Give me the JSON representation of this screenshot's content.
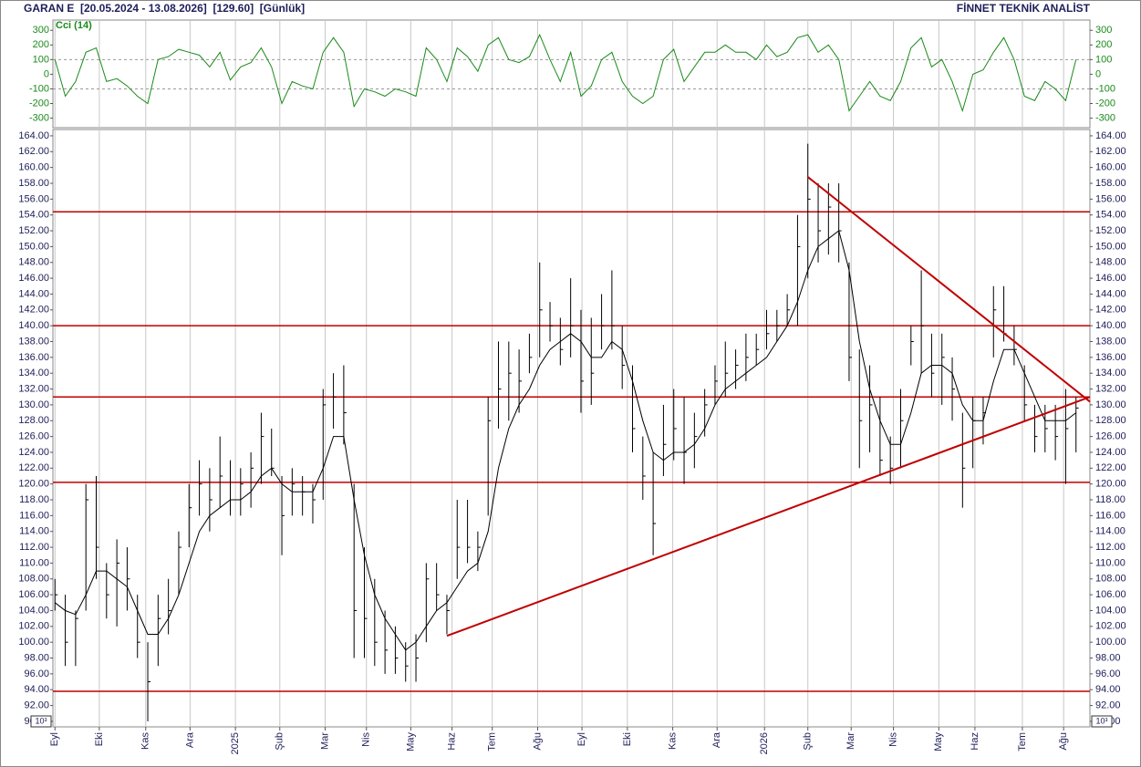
{
  "header": {
    "left": "GARAN E  [20.05.2024 - 13.08.2026]  [129.60]  [Günlük]",
    "right": "FİNNET TEKNİK ANALİST"
  },
  "chart_data": [
    {
      "type": "line",
      "title": "Cci (14)",
      "color": "#1a8a1a",
      "xlim": [
        -0.2,
        100.35
      ],
      "ylim": [
        -365,
        370
      ],
      "yticks": [
        300,
        200,
        100,
        0,
        -100,
        -200,
        -300
      ],
      "ref_lines": [
        100,
        -100
      ],
      "values": [
        100,
        -150,
        -50,
        150,
        180,
        -50,
        -30,
        -80,
        -150,
        -200,
        100,
        120,
        170,
        150,
        130,
        50,
        150,
        -40,
        50,
        80,
        180,
        50,
        -200,
        -50,
        -80,
        -100,
        150,
        250,
        150,
        -220,
        -100,
        -120,
        -150,
        -100,
        -120,
        -150,
        180,
        100,
        -50,
        180,
        120,
        20,
        200,
        250,
        100,
        80,
        120,
        270,
        100,
        -50,
        150,
        -150,
        -80,
        100,
        150,
        -50,
        -150,
        -200,
        -150,
        100,
        170,
        -50,
        50,
        150,
        150,
        200,
        150,
        150,
        100,
        200,
        120,
        150,
        250,
        270,
        150,
        200,
        100,
        -250,
        -150,
        -50,
        -150,
        -180,
        -50,
        180,
        250,
        50,
        100,
        -50,
        -250,
        0,
        30,
        150,
        250,
        100,
        -150,
        -180,
        -50,
        -100,
        -180,
        100
      ]
    },
    {
      "type": "ohlc",
      "color": "#000000",
      "scale_label": "10³",
      "xlim": [
        -0.2,
        100.35
      ],
      "ylim": [
        89.3,
        164.8
      ],
      "yticks": [
        {
          "value": 164,
          "label": "164.00"
        },
        {
          "value": 162,
          "label": "162.00"
        },
        {
          "value": 160,
          "label": "160.00"
        },
        {
          "value": 158,
          "label": "158.00"
        },
        {
          "value": 156,
          "label": "156.00"
        },
        {
          "value": 154,
          "label": "154.00"
        },
        {
          "value": 152,
          "label": "152.00"
        },
        {
          "value": 150,
          "label": "150.00"
        },
        {
          "value": 148,
          "label": "148.00"
        },
        {
          "value": 146,
          "label": "146.00"
        },
        {
          "value": 144,
          "label": "144.00"
        },
        {
          "value": 142,
          "label": "142.00"
        },
        {
          "value": 140,
          "label": "140.00"
        },
        {
          "value": 138,
          "label": "138.00"
        },
        {
          "value": 136,
          "label": "136.00"
        },
        {
          "value": 134,
          "label": "134.00"
        },
        {
          "value": 132,
          "label": "132.00"
        },
        {
          "value": 130,
          "label": "130.00"
        },
        {
          "value": 128,
          "label": "128.00"
        },
        {
          "value": 126,
          "label": "126.00"
        },
        {
          "value": 124,
          "label": "124.00"
        },
        {
          "value": 122,
          "label": "122.00"
        },
        {
          "value": 120,
          "label": "120.00"
        },
        {
          "value": 118,
          "label": "118.00"
        },
        {
          "value": 116,
          "label": "116.00"
        },
        {
          "value": 114,
          "label": "114.00"
        },
        {
          "value": 112,
          "label": "112.00"
        },
        {
          "value": 110,
          "label": "110.00"
        },
        {
          "value": 108,
          "label": "108.00"
        },
        {
          "value": 106,
          "label": "106.00"
        },
        {
          "value": 104,
          "label": "104.00"
        },
        {
          "value": 102,
          "label": "102.00"
        },
        {
          "value": 100,
          "label": "100.00"
        },
        {
          "value": 98,
          "label": "98.00"
        },
        {
          "value": 96,
          "label": "96.00"
        },
        {
          "value": 94,
          "label": "94.00"
        },
        {
          "value": 92,
          "label": "92.00"
        },
        {
          "value": 90,
          "label": "90.00"
        }
      ],
      "xticks": [
        {
          "value": 0,
          "label": "Eyl"
        },
        {
          "value": 4.3,
          "label": "Eki"
        },
        {
          "value": 8.8,
          "label": "Kas"
        },
        {
          "value": 13.1,
          "label": "Ara"
        },
        {
          "value": 17.5,
          "label": "2025"
        },
        {
          "value": 21.8,
          "label": "Şub"
        },
        {
          "value": 26.2,
          "label": "Mar"
        },
        {
          "value": 30.2,
          "label": "Nis"
        },
        {
          "value": 34.5,
          "label": "May"
        },
        {
          "value": 38.5,
          "label": "Haz"
        },
        {
          "value": 42.4,
          "label": "Tem"
        },
        {
          "value": 46.8,
          "label": "Ağu"
        },
        {
          "value": 51.1,
          "label": "Eyl"
        },
        {
          "value": 55.5,
          "label": "Eki"
        },
        {
          "value": 59.9,
          "label": "Kas"
        },
        {
          "value": 64.2,
          "label": "Ara"
        },
        {
          "value": 68.8,
          "label": "2026"
        },
        {
          "value": 73.0,
          "label": "Şub"
        },
        {
          "value": 77.2,
          "label": "Mar"
        },
        {
          "value": 81.3,
          "label": "Nis"
        },
        {
          "value": 85.7,
          "label": "May"
        },
        {
          "value": 89.2,
          "label": "Haz"
        },
        {
          "value": 93.8,
          "label": "Tem"
        },
        {
          "value": 97.8,
          "label": "Ağu"
        }
      ],
      "high": [
        108,
        106,
        104,
        120,
        121,
        110,
        113,
        112,
        106,
        100,
        106,
        108,
        114,
        120,
        123,
        122,
        126,
        123,
        122,
        124,
        129,
        127,
        121,
        122,
        121,
        120,
        132,
        134,
        135,
        120,
        112,
        108,
        104,
        102,
        100,
        101,
        110,
        110,
        106,
        118,
        118,
        114,
        131,
        138,
        138,
        137,
        139,
        148,
        143,
        141,
        146,
        142,
        141,
        144,
        147,
        140,
        135,
        126,
        124,
        130,
        132,
        131,
        129,
        132,
        135,
        138,
        137,
        139,
        139,
        142,
        142,
        144,
        154,
        163,
        158,
        158,
        158,
        148,
        137,
        135,
        131,
        126,
        132,
        140,
        147,
        139,
        139,
        136,
        129,
        131,
        131,
        145,
        145,
        140,
        135,
        130,
        130,
        130,
        132,
        131
      ],
      "low": [
        104,
        97,
        97,
        104,
        108,
        103,
        102,
        104,
        98,
        90,
        97,
        101,
        106,
        112,
        116,
        114,
        117,
        116,
        116,
        117,
        120,
        121,
        111,
        116,
        116,
        115,
        118,
        127,
        125,
        98,
        98,
        97,
        96,
        96,
        95,
        95,
        100,
        104,
        101,
        108,
        110,
        109,
        116,
        127,
        128,
        129,
        134,
        136,
        138,
        135,
        136,
        129,
        130,
        137,
        137,
        132,
        124,
        118,
        111,
        121,
        123,
        120,
        122,
        126,
        130,
        131,
        132,
        133,
        135,
        137,
        138,
        140,
        140,
        146,
        148,
        149,
        148,
        133,
        122,
        124,
        121,
        120,
        122,
        135,
        134,
        131,
        130,
        128,
        117,
        122,
        125,
        136,
        138,
        135,
        128,
        124,
        124,
        123,
        120,
        124
      ],
      "close": [
        106,
        100,
        103,
        118,
        112,
        106,
        110,
        108,
        100,
        95,
        103,
        104,
        112,
        117,
        120,
        118,
        121,
        118,
        120,
        122,
        126,
        122,
        116,
        120,
        119,
        118,
        130,
        131,
        129,
        104,
        103,
        100,
        99,
        98,
        97,
        98,
        108,
        106,
        104,
        112,
        112,
        112,
        128,
        132,
        134,
        133,
        136,
        142,
        140,
        137,
        140,
        133,
        134,
        140,
        140,
        135,
        127,
        121,
        115,
        125,
        127,
        124,
        126,
        130,
        133,
        134,
        135,
        136,
        137,
        139,
        140,
        142,
        150,
        156,
        152,
        155,
        152,
        136,
        128,
        130,
        123,
        122,
        128,
        138,
        140,
        134,
        136,
        132,
        122,
        128,
        129,
        142,
        139,
        137,
        130,
        126,
        127,
        126,
        127,
        129.6
      ],
      "ma": [
        105,
        104,
        103.5,
        106,
        109,
        109,
        108,
        107,
        104,
        101,
        101,
        103,
        106,
        110,
        114,
        116,
        117,
        118,
        118,
        119,
        121,
        122,
        120,
        119,
        119,
        119,
        122,
        126,
        126,
        118,
        111,
        106,
        103,
        101,
        99,
        100,
        102,
        104,
        105,
        107,
        109,
        110,
        114,
        122,
        127,
        130,
        132,
        135,
        137,
        138,
        139,
        138,
        136,
        136,
        138,
        137,
        133,
        128,
        124,
        123,
        124,
        124,
        125,
        127,
        130,
        132,
        133,
        134,
        135,
        136,
        138,
        140,
        143,
        147,
        150,
        151,
        152,
        147,
        138,
        132,
        128,
        125,
        125,
        129,
        134,
        135,
        135,
        134,
        130,
        128,
        128,
        133,
        137,
        137,
        134,
        131,
        128,
        128,
        128,
        129
      ],
      "hlines": [
        154.4,
        140,
        131,
        120.2,
        93.8
      ],
      "line_color": "#c00000",
      "trend_lines": [
        {
          "x": [
            38,
            100.35
          ],
          "y": [
            100.8,
            131
          ]
        },
        {
          "x": [
            73,
            100.35
          ],
          "y": [
            158.8,
            130.4
          ]
        }
      ]
    }
  ]
}
